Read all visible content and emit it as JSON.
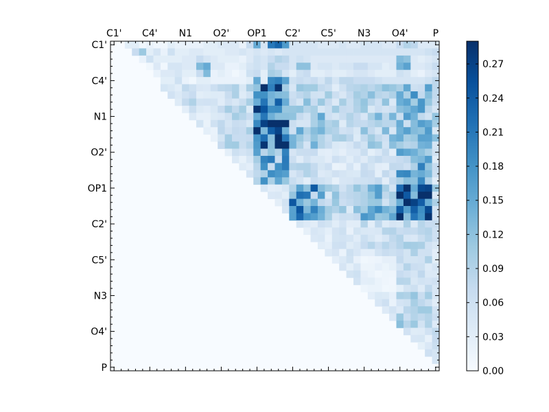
{
  "chart_data": {
    "type": "heatmap",
    "title": "",
    "xlabel": "",
    "ylabel": "",
    "colormap": "Blues",
    "colors": {
      "low": "#f7fbff",
      "high": "#08306b"
    },
    "vmin": 0.0,
    "vmax": 0.29,
    "n_rows": 46,
    "n_cols": 46,
    "triangle": "upper",
    "x_tick_labels": [
      "C1'",
      "C4'",
      "N1",
      "O2'",
      "OP1",
      "C2'",
      "C5'",
      "N3",
      "O4'",
      "P"
    ],
    "y_tick_labels": [
      "C1'",
      "C4'",
      "N1",
      "O2'",
      "OP1",
      "C2'",
      "C5'",
      "N3",
      "O4'",
      "P"
    ],
    "label_every_n_cells": 5,
    "colorbar_ticks": [
      "0.00",
      "0.03",
      "0.06",
      "0.09",
      "0.12",
      "0.15",
      "0.18",
      "0.21",
      "0.24",
      "0.27"
    ],
    "colorbar_tick_values": [
      0.0,
      0.03,
      0.06,
      0.09,
      0.12,
      0.15,
      0.18,
      0.21,
      0.24,
      0.27
    ],
    "row_values": [
      [
        0,
        0,
        0.03,
        0.03,
        0.01,
        0.02,
        0.01,
        0.01,
        0.03,
        0.02,
        0.02,
        0.02,
        0.02,
        0.03,
        0.03,
        0.04,
        0.04,
        0.04,
        0.02,
        0.07,
        0.15,
        0.05,
        0.21,
        0.23,
        0.17,
        0.05,
        0.05,
        0.05,
        0.05,
        0.04,
        0.04,
        0.04,
        0.05,
        0.04,
        0.04,
        0.05,
        0.05,
        0.05,
        0.04,
        0.04,
        0.07,
        0.09,
        0.08,
        0.04,
        0.04,
        0.04
      ],
      [
        0,
        0,
        0,
        0.07,
        0.11,
        0.03,
        0.05,
        0.02,
        0.06,
        0.03,
        0.03,
        0.04,
        0.04,
        0.03,
        0.03,
        0.03,
        0.04,
        0.04,
        0.05,
        0.04,
        0.05,
        0.04,
        0.05,
        0.04,
        0.05,
        0.05,
        0.05,
        0.05,
        0.05,
        0.05,
        0.05,
        0.05,
        0.05,
        0.05,
        0.05,
        0.05,
        0.05,
        0.05,
        0.05,
        0.05,
        0.05,
        0.05,
        0.05,
        0.05,
        0.06,
        0.07
      ],
      [
        0,
        0,
        0,
        0,
        0.02,
        0.06,
        0.03,
        0.03,
        0.03,
        0.03,
        0.04,
        0.04,
        0.07,
        0.05,
        0.04,
        0.03,
        0.03,
        0.03,
        0.02,
        0.04,
        0.06,
        0.05,
        0.07,
        0.09,
        0.08,
        0.05,
        0.06,
        0.05,
        0.04,
        0.04,
        0.04,
        0.04,
        0.04,
        0.04,
        0.04,
        0.04,
        0.04,
        0.04,
        0.04,
        0.04,
        0.13,
        0.12,
        0.04,
        0.03,
        0.04,
        0.05
      ],
      [
        0,
        0,
        0,
        0,
        0,
        0.01,
        0.04,
        0.01,
        0.05,
        0.05,
        0.04,
        0.04,
        0.13,
        0.15,
        0.04,
        0.04,
        0.02,
        0.02,
        0.03,
        0.05,
        0.06,
        0.05,
        0.09,
        0.07,
        0.07,
        0.05,
        0.12,
        0.12,
        0.04,
        0.05,
        0.05,
        0.04,
        0.05,
        0.05,
        0.07,
        0.07,
        0.05,
        0.05,
        0.03,
        0.04,
        0.14,
        0.16,
        0.04,
        0.04,
        0.05,
        0.07
      ],
      [
        0,
        0,
        0,
        0,
        0,
        0,
        0.02,
        0.04,
        0.04,
        0.05,
        0.03,
        0.03,
        0.07,
        0.13,
        0.02,
        0.03,
        0.02,
        0.01,
        0.02,
        0.06,
        0.07,
        0.03,
        0.1,
        0.09,
        0.05,
        0.03,
        0.06,
        0.07,
        0.03,
        0.03,
        0.04,
        0.03,
        0.03,
        0.04,
        0.05,
        0.05,
        0.04,
        0.03,
        0.03,
        0.03,
        0.06,
        0.05,
        0.03,
        0.02,
        0.04,
        0.05
      ],
      [
        0,
        0,
        0,
        0,
        0,
        0,
        0,
        0.03,
        0.03,
        0.06,
        0.02,
        0.01,
        0.03,
        0.03,
        0.02,
        0.02,
        0.02,
        0.02,
        0.02,
        0.03,
        0.15,
        0.03,
        0.19,
        0.2,
        0.16,
        0.06,
        0.07,
        0.06,
        0.07,
        0.05,
        0.08,
        0.05,
        0.08,
        0.08,
        0.07,
        0.07,
        0.07,
        0.06,
        0.05,
        0.05,
        0.05,
        0.05,
        0.05,
        0.05,
        0.06,
        0.08
      ]
    ],
    "block_intensities": [
      [
        0.0,
        0.05,
        0.06,
        0.05,
        0.18,
        0.08,
        0.06,
        0.07,
        0.1,
        0.06
      ],
      [
        0.0,
        0.0,
        0.06,
        0.07,
        0.2,
        0.09,
        0.07,
        0.08,
        0.12,
        0.07
      ],
      [
        0.0,
        0.0,
        0.0,
        0.07,
        0.25,
        0.1,
        0.07,
        0.09,
        0.11,
        0.08
      ],
      [
        0.0,
        0.0,
        0.0,
        0.0,
        0.14,
        0.06,
        0.04,
        0.05,
        0.13,
        0.05
      ],
      [
        0.0,
        0.0,
        0.0,
        0.0,
        0.0,
        0.16,
        0.08,
        0.12,
        0.22,
        0.08
      ],
      [
        0.0,
        0.0,
        0.0,
        0.0,
        0.0,
        0.0,
        0.04,
        0.06,
        0.07,
        0.05
      ],
      [
        0.0,
        0.0,
        0.0,
        0.0,
        0.0,
        0.0,
        0.0,
        0.02,
        0.06,
        0.05
      ],
      [
        0.0,
        0.0,
        0.0,
        0.0,
        0.0,
        0.0,
        0.0,
        0.0,
        0.08,
        0.05
      ],
      [
        0.0,
        0.0,
        0.0,
        0.0,
        0.0,
        0.0,
        0.0,
        0.0,
        0.0,
        0.05
      ],
      [
        0.0,
        0.0,
        0.0,
        0.0,
        0.0,
        0.0,
        0.0,
        0.0,
        0.0,
        0.0
      ]
    ],
    "grid": false,
    "legend": "colorbar-right"
  }
}
